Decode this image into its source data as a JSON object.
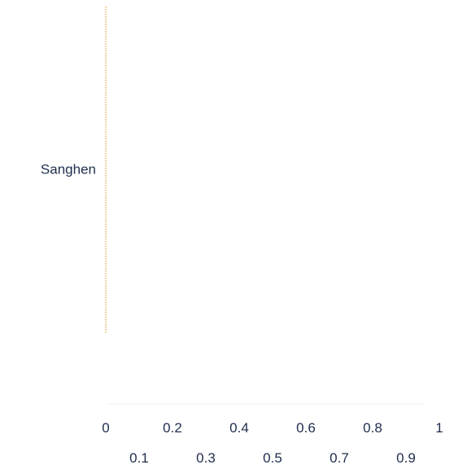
{
  "chart_data": {
    "type": "bar",
    "orientation": "horizontal",
    "categories": [
      "Sanghen"
    ],
    "values": [
      0
    ],
    "xlim": [
      0,
      1
    ],
    "x_ticks": [
      "0",
      "0.1",
      "0.2",
      "0.3",
      "0.4",
      "0.5",
      "0.6",
      "0.7",
      "0.8",
      "0.9",
      "1"
    ],
    "title": "",
    "xlabel": "",
    "ylabel": "",
    "grid": false,
    "legend": "none",
    "colors": {
      "axis_line": "#e8a040",
      "text": "#1f2d4d",
      "baseline": "#f2f2f2"
    }
  }
}
